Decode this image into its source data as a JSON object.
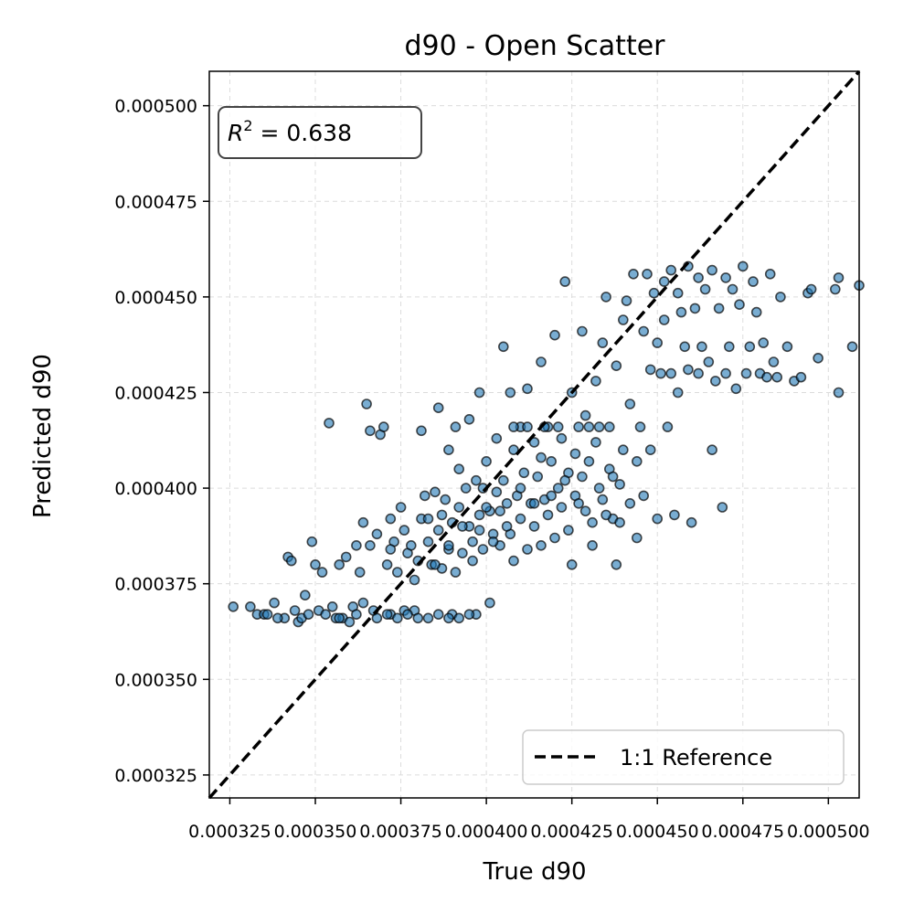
{
  "chart_data": {
    "type": "scatter",
    "title": "d90 - Open Scatter",
    "xlabel": "True d90",
    "ylabel": "Predicted d90",
    "xlim": [
      0.000319,
      0.000509
    ],
    "ylim": [
      0.000319,
      0.000509
    ],
    "xticks": [
      0.000325,
      0.00035,
      0.000375,
      0.0004,
      0.000425,
      0.00045,
      0.000475,
      0.0005
    ],
    "xtick_labels": [
      "0.000325",
      "0.000350",
      "0.000375",
      "0.000400",
      "0.000425",
      "0.000450",
      "0.000475",
      "0.000500"
    ],
    "yticks": [
      0.000325,
      0.00035,
      0.000375,
      0.0004,
      0.000425,
      0.00045,
      0.000475,
      0.0005
    ],
    "ytick_labels": [
      "0.000325",
      "0.000350",
      "0.000375",
      "0.000400",
      "0.000425",
      "0.000450",
      "0.000475",
      "0.000500"
    ],
    "grid": true,
    "annotation": {
      "prefix": "R",
      "exponent": "2",
      "suffix": " = 0.638",
      "position": "top-left"
    },
    "legend": {
      "position": "bottom-right",
      "entries": [
        {
          "label": "1:1 Reference",
          "style": "dashed",
          "color": "#000000"
        }
      ]
    },
    "reference_line": {
      "label": "1:1 Reference",
      "from": [
        0.000319,
        0.000319
      ],
      "to": [
        0.000509,
        0.000509
      ]
    },
    "series": [
      {
        "marker_color": "#1f77b4",
        "points": [
          [
            0.000326,
            0.000369
          ],
          [
            0.000331,
            0.000369
          ],
          [
            0.000333,
            0.000367
          ],
          [
            0.000335,
            0.000367
          ],
          [
            0.000338,
            0.00037
          ],
          [
            0.000341,
            0.000366
          ],
          [
            0.000342,
            0.000382
          ],
          [
            0.000343,
            0.000381
          ],
          [
            0.000344,
            0.000368
          ],
          [
            0.000345,
            0.000365
          ],
          [
            0.000347,
            0.000372
          ],
          [
            0.000349,
            0.000386
          ],
          [
            0.00035,
            0.00038
          ],
          [
            0.000351,
            0.000368
          ],
          [
            0.000352,
            0.000378
          ],
          [
            0.000354,
            0.000417
          ],
          [
            0.000355,
            0.000369
          ],
          [
            0.000356,
            0.000366
          ],
          [
            0.000357,
            0.00038
          ],
          [
            0.000358,
            0.000366
          ],
          [
            0.000359,
            0.000382
          ],
          [
            0.00036,
            0.000365
          ],
          [
            0.000361,
            0.000369
          ],
          [
            0.000362,
            0.000385
          ],
          [
            0.000363,
            0.000378
          ],
          [
            0.000364,
            0.000391
          ],
          [
            0.000365,
            0.000422
          ],
          [
            0.000366,
            0.000415
          ],
          [
            0.000366,
            0.000385
          ],
          [
            0.000367,
            0.000368
          ],
          [
            0.000368,
            0.000388
          ],
          [
            0.000369,
            0.000414
          ],
          [
            0.00037,
            0.000416
          ],
          [
            0.000371,
            0.00038
          ],
          [
            0.000372,
            0.000392
          ],
          [
            0.000372,
            0.000367
          ],
          [
            0.000373,
            0.000386
          ],
          [
            0.000374,
            0.000378
          ],
          [
            0.000375,
            0.000395
          ],
          [
            0.000376,
            0.000368
          ],
          [
            0.000377,
            0.000383
          ],
          [
            0.000378,
            0.000385
          ],
          [
            0.000379,
            0.000368
          ],
          [
            0.00038,
            0.000381
          ],
          [
            0.000381,
            0.000415
          ],
          [
            0.000381,
            0.000392
          ],
          [
            0.000382,
            0.000398
          ],
          [
            0.000383,
            0.000386
          ],
          [
            0.000384,
            0.00038
          ],
          [
            0.000385,
            0.000399
          ],
          [
            0.000386,
            0.000389
          ],
          [
            0.000386,
            0.000421
          ],
          [
            0.000387,
            0.000379
          ],
          [
            0.000388,
            0.000397
          ],
          [
            0.000389,
            0.000384
          ],
          [
            0.000389,
            0.00041
          ],
          [
            0.00039,
            0.000391
          ],
          [
            0.00039,
            0.000367
          ],
          [
            0.000391,
            0.000416
          ],
          [
            0.000392,
            0.000395
          ],
          [
            0.000392,
            0.000405
          ],
          [
            0.000393,
            0.000383
          ],
          [
            0.000394,
            0.0004
          ],
          [
            0.000395,
            0.000418
          ],
          [
            0.000395,
            0.00039
          ],
          [
            0.000396,
            0.000386
          ],
          [
            0.000397,
            0.000402
          ],
          [
            0.000397,
            0.000367
          ],
          [
            0.000398,
            0.000393
          ],
          [
            0.000398,
            0.000425
          ],
          [
            0.000399,
            0.0004
          ],
          [
            0.000399,
            0.000384
          ],
          [
            0.0004,
            0.000407
          ],
          [
            0.000401,
            0.000394
          ],
          [
            0.000401,
            0.00037
          ],
          [
            0.000402,
            0.000388
          ],
          [
            0.000403,
            0.000413
          ],
          [
            0.000403,
            0.000399
          ],
          [
            0.000404,
            0.000385
          ],
          [
            0.000405,
            0.000437
          ],
          [
            0.000405,
            0.000402
          ],
          [
            0.000406,
            0.000396
          ],
          [
            0.000407,
            0.000425
          ],
          [
            0.000407,
            0.000388
          ],
          [
            0.000408,
            0.00041
          ],
          [
            0.000408,
            0.000381
          ],
          [
            0.000409,
            0.000398
          ],
          [
            0.00041,
            0.000416
          ],
          [
            0.00041,
            0.000392
          ],
          [
            0.000411,
            0.000404
          ],
          [
            0.000412,
            0.000384
          ],
          [
            0.000412,
            0.000426
          ],
          [
            0.000413,
            0.000396
          ],
          [
            0.000414,
            0.00039
          ],
          [
            0.000414,
            0.000412
          ],
          [
            0.000415,
            0.000403
          ],
          [
            0.000416,
            0.000385
          ],
          [
            0.000416,
            0.000433
          ],
          [
            0.000417,
            0.000397
          ],
          [
            0.000418,
            0.000416
          ],
          [
            0.000418,
            0.000393
          ],
          [
            0.000419,
            0.000407
          ],
          [
            0.00042,
            0.000387
          ],
          [
            0.00042,
            0.00044
          ],
          [
            0.000421,
            0.0004
          ],
          [
            0.000422,
            0.000413
          ],
          [
            0.000422,
            0.000395
          ],
          [
            0.000423,
            0.000454
          ],
          [
            0.000424,
            0.000404
          ],
          [
            0.000424,
            0.000389
          ],
          [
            0.000425,
            0.000425
          ],
          [
            0.000426,
            0.000409
          ],
          [
            0.000426,
            0.000398
          ],
          [
            0.000427,
            0.000416
          ],
          [
            0.000428,
            0.000403
          ],
          [
            0.000428,
            0.000441
          ],
          [
            0.000429,
            0.000394
          ],
          [
            0.00043,
            0.000416
          ],
          [
            0.00043,
            0.000407
          ],
          [
            0.000431,
            0.000385
          ],
          [
            0.000432,
            0.000428
          ],
          [
            0.000432,
            0.000412
          ],
          [
            0.000433,
            0.0004
          ],
          [
            0.000434,
            0.000438
          ],
          [
            0.000434,
            0.000397
          ],
          [
            0.000435,
            0.00045
          ],
          [
            0.000436,
            0.000405
          ],
          [
            0.000436,
            0.000416
          ],
          [
            0.000437,
            0.000392
          ],
          [
            0.000438,
            0.000432
          ],
          [
            0.000438,
            0.00038
          ],
          [
            0.000439,
            0.000401
          ],
          [
            0.00044,
            0.000444
          ],
          [
            0.00044,
            0.00041
          ],
          [
            0.000441,
            0.000449
          ],
          [
            0.000442,
            0.000396
          ],
          [
            0.000442,
            0.000422
          ],
          [
            0.000443,
            0.000456
          ],
          [
            0.000444,
            0.000407
          ],
          [
            0.000444,
            0.000387
          ],
          [
            0.000445,
            0.000416
          ],
          [
            0.000446,
            0.000441
          ],
          [
            0.000446,
            0.000398
          ],
          [
            0.000447,
            0.000456
          ],
          [
            0.000448,
            0.000431
          ],
          [
            0.000448,
            0.00041
          ],
          [
            0.000449,
            0.000451
          ],
          [
            0.00045,
            0.000438
          ],
          [
            0.00045,
            0.000392
          ],
          [
            0.000451,
            0.00043
          ],
          [
            0.000452,
            0.000454
          ],
          [
            0.000452,
            0.000444
          ],
          [
            0.000453,
            0.000416
          ],
          [
            0.000454,
            0.000457
          ],
          [
            0.000454,
            0.00043
          ],
          [
            0.000455,
            0.000393
          ],
          [
            0.000456,
            0.000451
          ],
          [
            0.000456,
            0.000425
          ],
          [
            0.000457,
            0.000446
          ],
          [
            0.000458,
            0.000437
          ],
          [
            0.000459,
            0.000458
          ],
          [
            0.000459,
            0.000431
          ],
          [
            0.00046,
            0.000391
          ],
          [
            0.000461,
            0.000447
          ],
          [
            0.000462,
            0.00043
          ],
          [
            0.000462,
            0.000455
          ],
          [
            0.000463,
            0.000437
          ],
          [
            0.000464,
            0.000452
          ],
          [
            0.000465,
            0.000433
          ],
          [
            0.000466,
            0.000457
          ],
          [
            0.000466,
            0.00041
          ],
          [
            0.000467,
            0.000428
          ],
          [
            0.000468,
            0.000447
          ],
          [
            0.000469,
            0.000395
          ],
          [
            0.00047,
            0.00043
          ],
          [
            0.00047,
            0.000455
          ],
          [
            0.000471,
            0.000437
          ],
          [
            0.000472,
            0.000452
          ],
          [
            0.000473,
            0.000426
          ],
          [
            0.000474,
            0.000448
          ],
          [
            0.000475,
            0.000458
          ],
          [
            0.000476,
            0.00043
          ],
          [
            0.000477,
            0.000437
          ],
          [
            0.000478,
            0.000454
          ],
          [
            0.000479,
            0.000446
          ],
          [
            0.00048,
            0.00043
          ],
          [
            0.000481,
            0.000438
          ],
          [
            0.000482,
            0.000429
          ],
          [
            0.000483,
            0.000456
          ],
          [
            0.000484,
            0.000433
          ],
          [
            0.000485,
            0.000429
          ],
          [
            0.000486,
            0.00045
          ],
          [
            0.000488,
            0.000437
          ],
          [
            0.00049,
            0.000428
          ],
          [
            0.000492,
            0.000429
          ],
          [
            0.000494,
            0.000451
          ],
          [
            0.000495,
            0.000452
          ],
          [
            0.000497,
            0.000434
          ],
          [
            0.000502,
            0.000452
          ],
          [
            0.000503,
            0.000425
          ],
          [
            0.000503,
            0.000455
          ],
          [
            0.000507,
            0.000437
          ],
          [
            0.000509,
            0.000453
          ],
          [
            0.000336,
            0.000367
          ],
          [
            0.000339,
            0.000366
          ],
          [
            0.000346,
            0.000366
          ],
          [
            0.000348,
            0.000367
          ],
          [
            0.000353,
            0.000367
          ],
          [
            0.000357,
            0.000366
          ],
          [
            0.000362,
            0.000367
          ],
          [
            0.000364,
            0.00037
          ],
          [
            0.000368,
            0.000366
          ],
          [
            0.000371,
            0.000367
          ],
          [
            0.000374,
            0.000366
          ],
          [
            0.000377,
            0.000367
          ],
          [
            0.00038,
            0.000366
          ],
          [
            0.000383,
            0.000366
          ],
          [
            0.000386,
            0.000367
          ],
          [
            0.000389,
            0.000366
          ],
          [
            0.000392,
            0.000366
          ],
          [
            0.000395,
            0.000367
          ],
          [
            0.000372,
            0.000384
          ],
          [
            0.000376,
            0.000389
          ],
          [
            0.000379,
            0.000376
          ],
          [
            0.000383,
            0.000392
          ],
          [
            0.000385,
            0.00038
          ],
          [
            0.000387,
            0.000393
          ],
          [
            0.000389,
            0.000385
          ],
          [
            0.000391,
            0.000378
          ],
          [
            0.000393,
            0.00039
          ],
          [
            0.000396,
            0.000381
          ],
          [
            0.000398,
            0.000389
          ],
          [
            0.0004,
            0.000395
          ],
          [
            0.000402,
            0.000386
          ],
          [
            0.000404,
            0.000394
          ],
          [
            0.000406,
            0.00039
          ],
          [
            0.000408,
            0.000416
          ],
          [
            0.00041,
            0.0004
          ],
          [
            0.000412,
            0.000416
          ],
          [
            0.000414,
            0.000396
          ],
          [
            0.000416,
            0.000408
          ],
          [
            0.000417,
            0.000416
          ],
          [
            0.000419,
            0.000398
          ],
          [
            0.000421,
            0.000416
          ],
          [
            0.000423,
            0.000402
          ],
          [
            0.000425,
            0.00038
          ],
          [
            0.000427,
            0.000396
          ],
          [
            0.000429,
            0.000419
          ],
          [
            0.000431,
            0.000391
          ],
          [
            0.000433,
            0.000416
          ],
          [
            0.000435,
            0.000393
          ],
          [
            0.000437,
            0.000403
          ],
          [
            0.000439,
            0.000391
          ]
        ]
      }
    ]
  }
}
